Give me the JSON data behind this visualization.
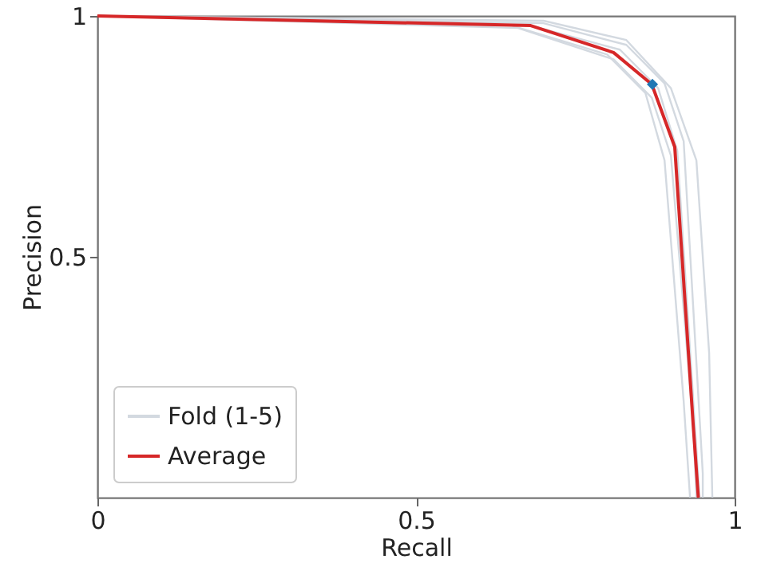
{
  "chart_data": {
    "type": "line",
    "xlabel": "Recall",
    "ylabel": "Precision",
    "xlim": [
      0,
      1
    ],
    "ylim": [
      0,
      1
    ],
    "xticks": [
      0,
      0.5,
      1
    ],
    "yticks": [
      0.5,
      1
    ],
    "grid": false,
    "legend": "bottom left",
    "line_style": "solid",
    "series": [
      {
        "name": "Fold (1-5)",
        "color": "#d3d9e0",
        "x": [
          0,
          0.7,
          0.83,
          0.9,
          0.94,
          0.96,
          0.965
        ],
        "values": [
          1,
          0.99,
          0.95,
          0.85,
          0.7,
          0.3,
          0
        ]
      },
      {
        "color": "#d3d9e0",
        "x": [
          0,
          0.65,
          0.8,
          0.86,
          0.89,
          0.92,
          0.93
        ],
        "values": [
          1,
          0.98,
          0.92,
          0.84,
          0.7,
          0.2,
          0
        ]
      },
      {
        "color": "#d3d9e0",
        "x": [
          0,
          0.68,
          0.82,
          0.88,
          0.91,
          0.94,
          0.945
        ],
        "values": [
          1,
          0.98,
          0.93,
          0.85,
          0.72,
          0.1,
          0
        ]
      },
      {
        "color": "#d3d9e0",
        "x": [
          0,
          0.7,
          0.83,
          0.89,
          0.92,
          0.95,
          0.95
        ],
        "values": [
          1,
          0.985,
          0.94,
          0.86,
          0.74,
          0.05,
          0
        ]
      },
      {
        "color": "#d3d9e0",
        "x": [
          0,
          0.66,
          0.81,
          0.87,
          0.9,
          0.935,
          0.94
        ],
        "values": [
          1,
          0.975,
          0.91,
          0.83,
          0.71,
          0.15,
          0
        ]
      },
      {
        "name": "Average",
        "color": "#d62728",
        "x": [
          0,
          0.68,
          0.81,
          0.87,
          0.906,
          0.935,
          0.943
        ],
        "values": [
          1,
          0.98,
          0.924,
          0.858,
          0.728,
          0.15,
          0
        ]
      },
      {
        "type": "scatter",
        "marker": "diamond",
        "color": "#1f77b4",
        "x": [
          0.871
        ],
        "values": [
          0.858
        ]
      }
    ]
  }
}
